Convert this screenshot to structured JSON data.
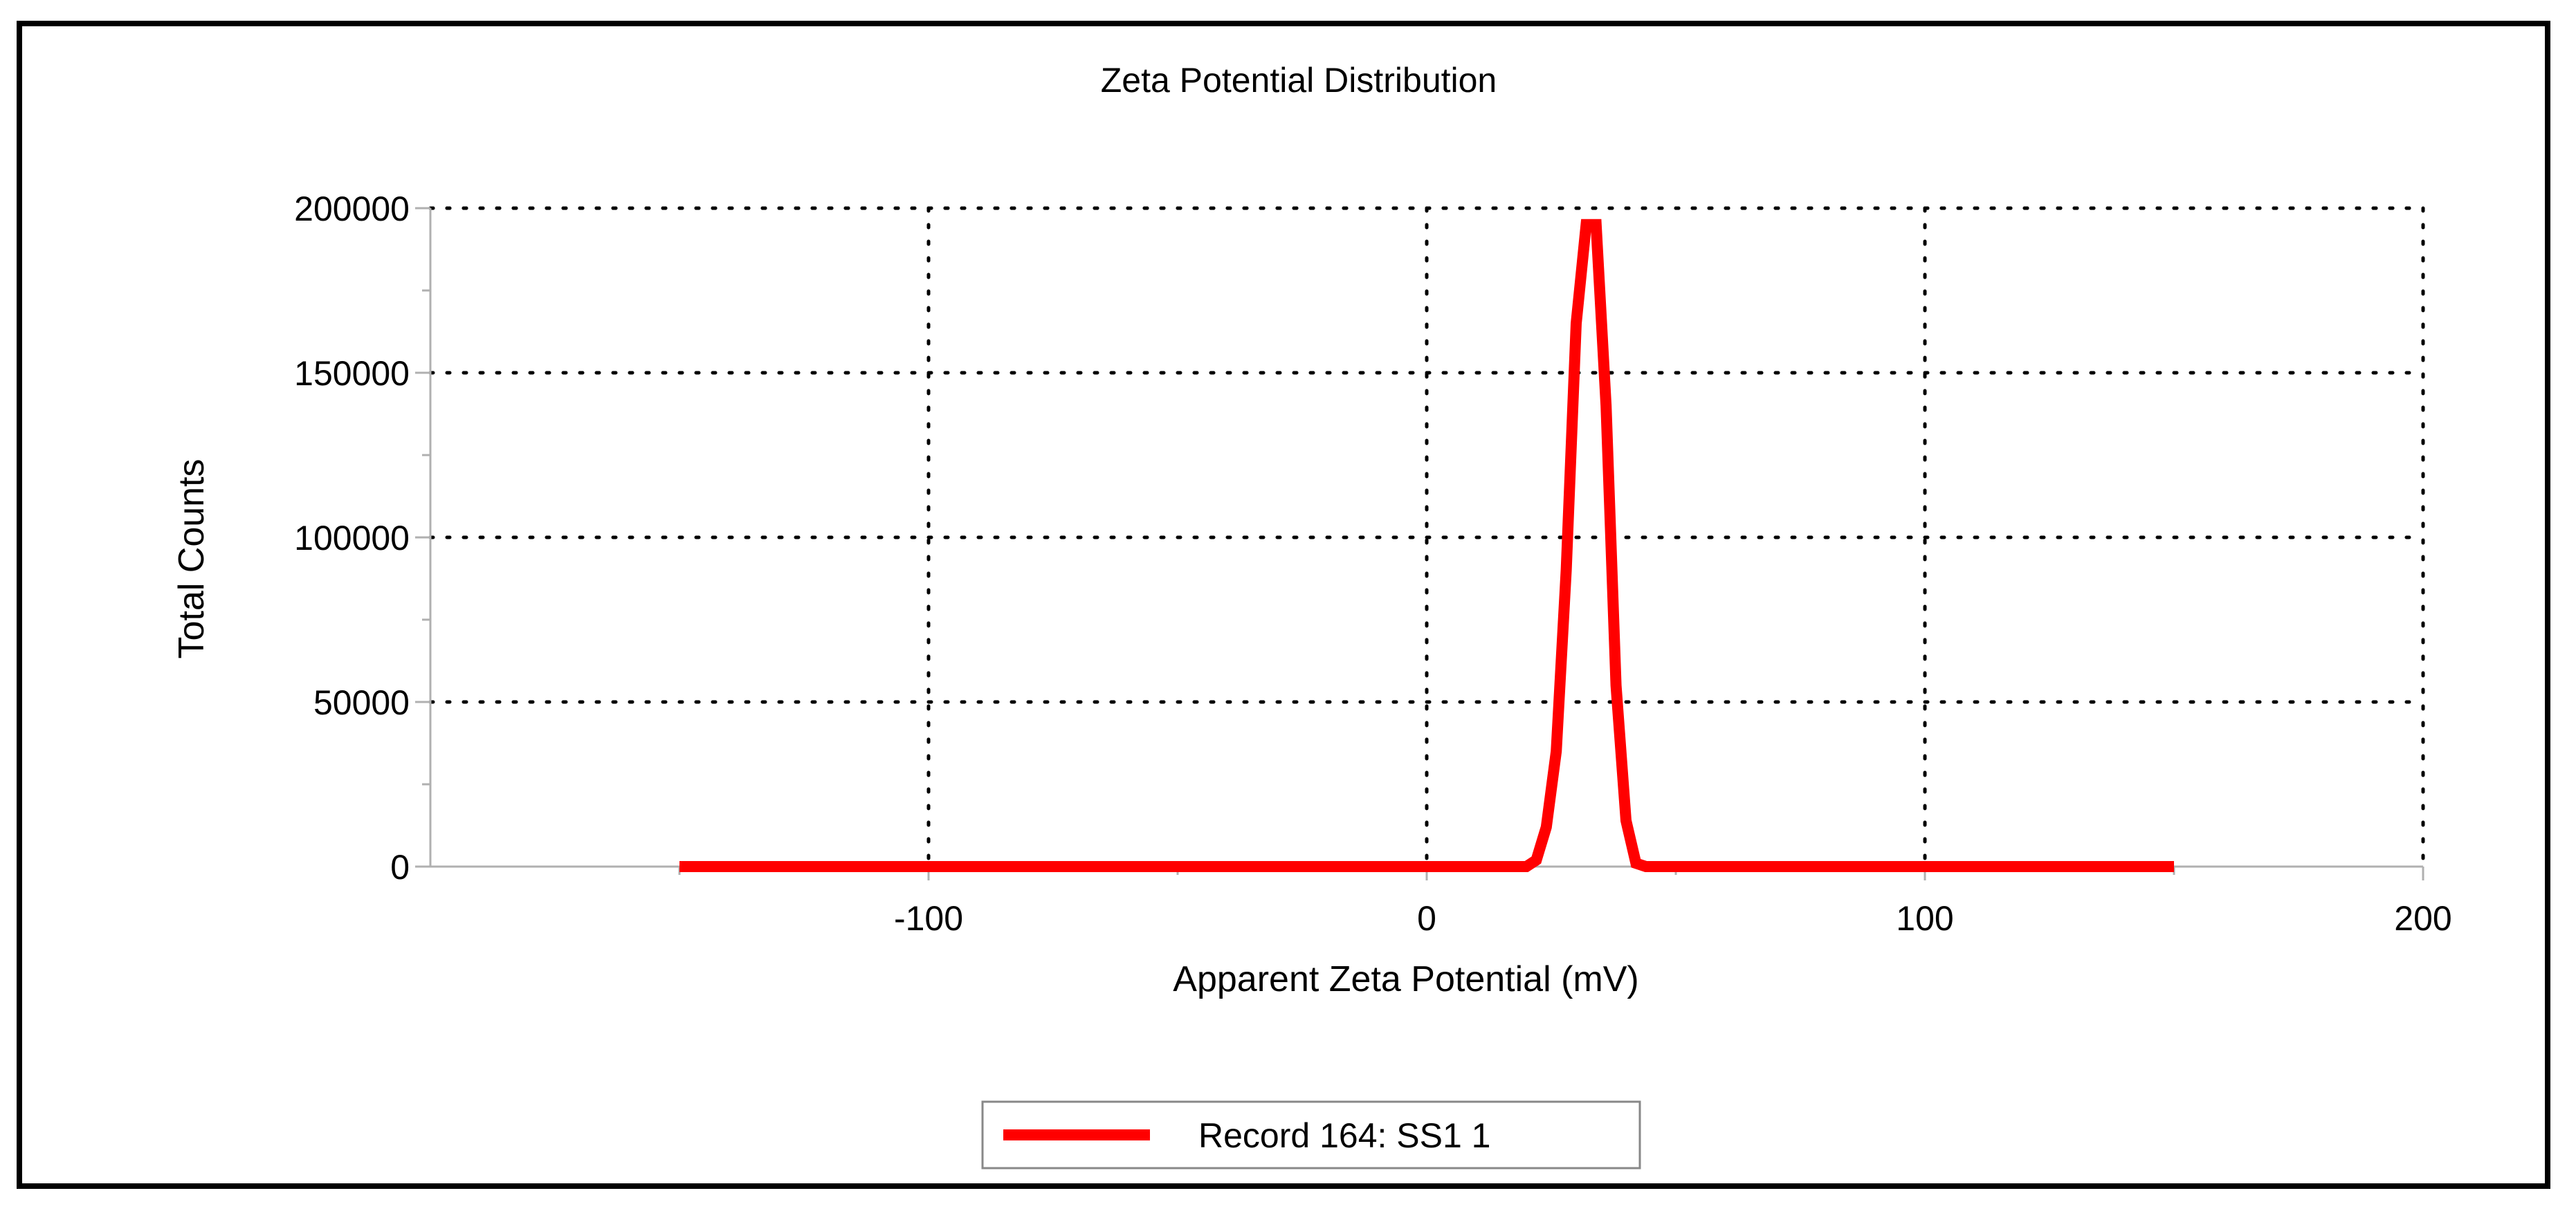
{
  "chart_data": {
    "type": "line",
    "title": "Zeta Potential Distribution",
    "xlabel": "Apparent Zeta Potential (mV)",
    "ylabel": "Total Counts",
    "xlim": [
      -200,
      200
    ],
    "ylim": [
      0,
      200000
    ],
    "x_ticks": [
      -100,
      0,
      100,
      200
    ],
    "x_tick_labels": [
      "-100",
      "0",
      "100",
      "200"
    ],
    "y_ticks": [
      0,
      50000,
      100000,
      150000,
      200000
    ],
    "y_tick_labels": [
      "0",
      "50000",
      "100000",
      "150000",
      "200000"
    ],
    "grid": true,
    "legend_position": "bottom-center",
    "colors": {
      "series": "#ff0000",
      "grid": "#000000",
      "axis": "#b0b0b0"
    },
    "series": [
      {
        "name": "Record 164: SS1 1",
        "x": [
          -150,
          -100,
          -50,
          0,
          20,
          22,
          24,
          26,
          28,
          30,
          32,
          34,
          36,
          38,
          40,
          42,
          44,
          46,
          48,
          50,
          52,
          60,
          100,
          150
        ],
        "y": [
          0,
          0,
          0,
          0,
          0,
          2000,
          12000,
          35000,
          90000,
          165000,
          195000,
          195000,
          140000,
          55000,
          14000,
          1000,
          0,
          0,
          0,
          0,
          0,
          0,
          0,
          0
        ]
      }
    ]
  }
}
